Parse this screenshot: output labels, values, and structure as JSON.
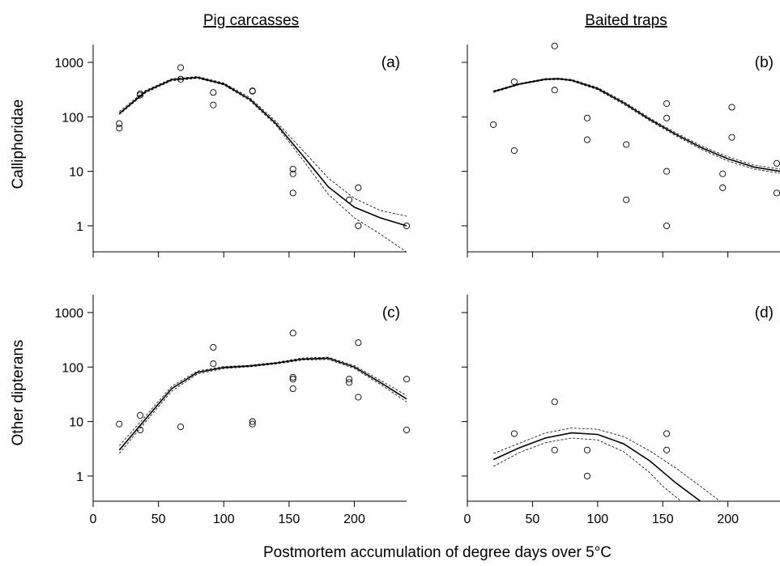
{
  "figure": {
    "xlabel": "Postmortem accumulation of degree days over 5°C",
    "column_titles": [
      "Pig carcasses",
      "Baited traps"
    ],
    "row_labels": [
      "Calliphoridae",
      "Other dipterans"
    ]
  },
  "chart_data": [
    {
      "panel": "(a)",
      "type": "scatter",
      "column": "Pig carcasses",
      "row": "Calliphoridae",
      "x_scale": "linear",
      "y_scale": "log",
      "xlim": [
        0,
        240
      ],
      "ylim": [
        0.33,
        2000
      ],
      "xticks": [],
      "yticks": [
        1,
        10,
        100,
        1000
      ],
      "ytick_labels": [
        "1",
        "10",
        "100",
        "1000"
      ],
      "points": [
        [
          20,
          75
        ],
        [
          20,
          62
        ],
        [
          36,
          250
        ],
        [
          36,
          265
        ],
        [
          67,
          800
        ],
        [
          67,
          490
        ],
        [
          92,
          280
        ],
        [
          92,
          165
        ],
        [
          122,
          300
        ],
        [
          122,
          295
        ],
        [
          153,
          11
        ],
        [
          153,
          9
        ],
        [
          153,
          4
        ],
        [
          196,
          3
        ],
        [
          203,
          5
        ],
        [
          203,
          1
        ],
        [
          240,
          1
        ]
      ],
      "fit": {
        "x": [
          20,
          40,
          60,
          80,
          100,
          120,
          140,
          160,
          180,
          200,
          220,
          240
        ],
        "y": [
          115,
          290,
          480,
          530,
          400,
          210,
          75,
          20,
          5.2,
          2.2,
          1.4,
          1.0
        ]
      },
      "ci_upper": {
        "x": [
          20,
          40,
          60,
          80,
          100,
          120,
          140,
          160,
          180,
          200,
          220,
          240
        ],
        "y": [
          125,
          305,
          500,
          550,
          420,
          225,
          82,
          25,
          7.5,
          3.2,
          1.9,
          1.5
        ]
      },
      "ci_lower": {
        "x": [
          20,
          40,
          60,
          80,
          100,
          120,
          140,
          160,
          180,
          200,
          220,
          240
        ],
        "y": [
          110,
          275,
          460,
          510,
          385,
          198,
          70,
          17,
          3.8,
          1.4,
          0.7,
          0.33
        ]
      }
    },
    {
      "panel": "(b)",
      "type": "scatter",
      "column": "Baited traps",
      "row": "Calliphoridae",
      "x_scale": "linear",
      "y_scale": "log",
      "xlim": [
        0,
        240
      ],
      "ylim": [
        0.33,
        2000
      ],
      "xticks": [],
      "yticks": [
        1,
        10,
        100,
        1000
      ],
      "ytick_labels": [],
      "points": [
        [
          20,
          72
        ],
        [
          36,
          440
        ],
        [
          36,
          24
        ],
        [
          67,
          2000
        ],
        [
          67,
          310
        ],
        [
          92,
          95
        ],
        [
          92,
          38
        ],
        [
          122,
          31
        ],
        [
          122,
          3
        ],
        [
          153,
          175
        ],
        [
          153,
          95
        ],
        [
          153,
          10
        ],
        [
          153,
          1
        ],
        [
          196,
          9
        ],
        [
          196,
          5
        ],
        [
          203,
          150
        ],
        [
          203,
          42
        ],
        [
          240,
          14
        ],
        [
          240,
          4
        ]
      ],
      "fit": {
        "x": [
          20,
          40,
          60,
          70,
          80,
          100,
          120,
          140,
          160,
          180,
          200,
          220,
          240
        ],
        "y": [
          290,
          400,
          490,
          500,
          470,
          330,
          180,
          90,
          48,
          27,
          17,
          12,
          10
        ]
      },
      "ci_upper": {
        "x": [
          20,
          40,
          60,
          70,
          80,
          100,
          120,
          140,
          160,
          180,
          200,
          220,
          240
        ],
        "y": [
          300,
          410,
          505,
          515,
          485,
          345,
          190,
          95,
          51,
          29,
          18.5,
          13,
          11
        ]
      },
      "ci_lower": {
        "x": [
          20,
          40,
          60,
          70,
          80,
          100,
          120,
          140,
          160,
          180,
          200,
          220,
          240
        ],
        "y": [
          280,
          390,
          475,
          485,
          455,
          315,
          170,
          85,
          45,
          25,
          15.5,
          11,
          9.2
        ]
      }
    },
    {
      "panel": "(c)",
      "type": "scatter",
      "column": "Pig carcasses",
      "row": "Other dipterans",
      "x_scale": "linear",
      "y_scale": "log",
      "xlim": [
        0,
        240
      ],
      "ylim": [
        0.33,
        2000
      ],
      "xticks": [
        0,
        50,
        100,
        150,
        200
      ],
      "yticks": [
        1,
        10,
        100,
        1000
      ],
      "ytick_labels": [
        "1",
        "10",
        "100",
        "1000"
      ],
      "points": [
        [
          20,
          9
        ],
        [
          36,
          13
        ],
        [
          36,
          7
        ],
        [
          67,
          8
        ],
        [
          92,
          230
        ],
        [
          92,
          115
        ],
        [
          122,
          10
        ],
        [
          122,
          9
        ],
        [
          153,
          420
        ],
        [
          153,
          65
        ],
        [
          153,
          60
        ],
        [
          153,
          40
        ],
        [
          196,
          60
        ],
        [
          196,
          52
        ],
        [
          203,
          280
        ],
        [
          203,
          28
        ],
        [
          240,
          60
        ],
        [
          240,
          7
        ]
      ],
      "fit": {
        "x": [
          20,
          40,
          60,
          80,
          100,
          120,
          140,
          160,
          180,
          200,
          220,
          240
        ],
        "y": [
          3,
          11,
          40,
          80,
          98,
          105,
          118,
          140,
          145,
          100,
          52,
          26
        ]
      },
      "ci_upper": {
        "x": [
          20,
          40,
          60,
          80,
          100,
          120,
          140,
          160,
          180,
          200,
          220,
          240
        ],
        "y": [
          3.6,
          12.5,
          44,
          85,
          102,
          108,
          122,
          146,
          152,
          106,
          57,
          30
        ]
      },
      "ci_lower": {
        "x": [
          20,
          40,
          60,
          80,
          100,
          120,
          140,
          160,
          180,
          200,
          220,
          240
        ],
        "y": [
          2.6,
          9.8,
          36,
          75,
          94,
          101,
          114,
          134,
          138,
          94,
          48,
          23
        ]
      }
    },
    {
      "panel": "(d)",
      "type": "scatter",
      "column": "Baited traps",
      "row": "Other dipterans",
      "x_scale": "linear",
      "y_scale": "log",
      "xlim": [
        0,
        240
      ],
      "ylim": [
        0.33,
        2000
      ],
      "xticks": [
        0,
        50,
        100,
        150,
        200
      ],
      "yticks": [
        1,
        10,
        100,
        1000
      ],
      "ytick_labels": [],
      "points": [
        [
          36,
          6
        ],
        [
          67,
          23
        ],
        [
          67,
          3
        ],
        [
          92,
          3
        ],
        [
          92,
          1
        ],
        [
          153,
          6
        ],
        [
          153,
          3
        ]
      ],
      "fit": {
        "x": [
          20,
          40,
          60,
          80,
          100,
          120,
          140,
          160,
          180
        ],
        "y": [
          2.0,
          3.3,
          5.0,
          6.2,
          5.8,
          3.9,
          1.9,
          0.75,
          0.33
        ]
      },
      "ci_upper": {
        "x": [
          20,
          40,
          60,
          80,
          100,
          120,
          140,
          160,
          180,
          195
        ],
        "y": [
          2.6,
          4.0,
          6.2,
          7.6,
          7.2,
          5.3,
          2.9,
          1.4,
          0.62,
          0.33
        ]
      },
      "ci_lower": {
        "x": [
          20,
          40,
          60,
          80,
          100,
          120,
          140,
          150,
          165
        ],
        "y": [
          1.5,
          2.7,
          4.1,
          5.0,
          4.6,
          2.8,
          1.15,
          0.65,
          0.33
        ]
      }
    }
  ]
}
